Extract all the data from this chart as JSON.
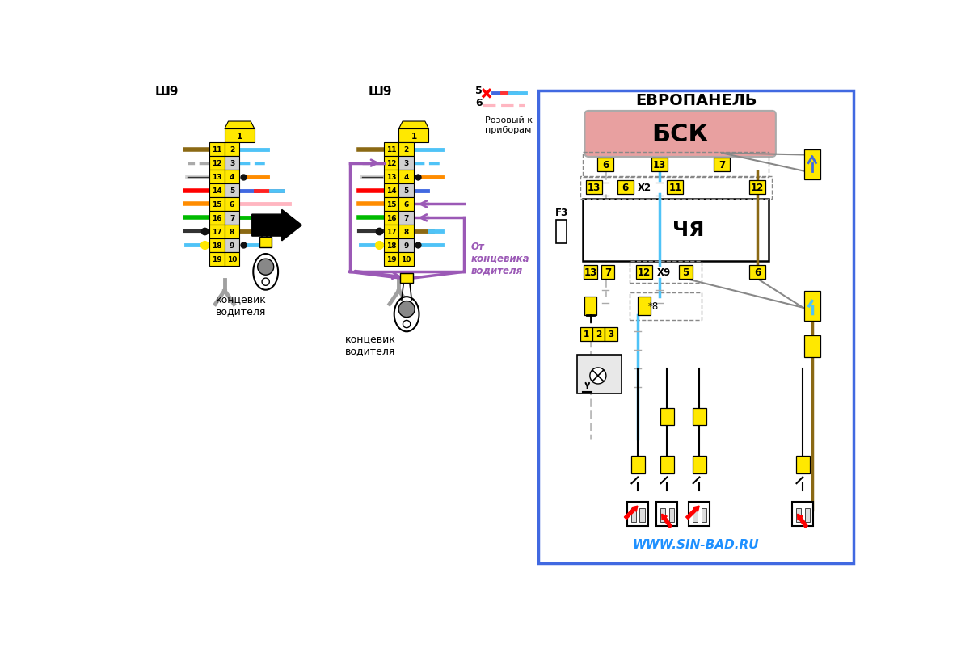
{
  "bg_color": "#ffffff",
  "yellow": "#FFE800",
  "pink_bsk": "#E8A0A0",
  "purple_wire": "#9B59B6",
  "blue_wire": "#4FC3F7",
  "red_wire": "#FF0000",
  "brown_wire": "#8B6914",
  "orange_wire": "#FF8C00",
  "green_wire": "#00AA00",
  "black_wire": "#000000",
  "pink_wire": "#FFB6C1",
  "dark_blue_wire": "#4169E1",
  "gray_wire": "#888888",
  "title_europanel": "ЕВРОПАНЕЛЬ",
  "title_bsk": "БСК",
  "title_chya": "ЧЯ",
  "label_sh9_left": "Ш9",
  "label_sh9_right": "Ш9",
  "label_koncevic": "концевик\nводителя",
  "label_ot_koncevika": "От\nконцевика\nводителя",
  "label_rozoviy": "Розовый к\nприборам",
  "label_www": "WWW.SIN-BAD.RU"
}
